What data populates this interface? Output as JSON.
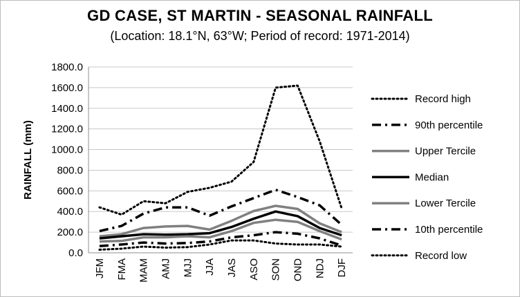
{
  "title": "GD CASE, ST MARTIN - SEASONAL RAINFALL",
  "subtitle": "(Location: 18.1°N, 63°W; Period of record: 1971-2014)",
  "chart_data": {
    "type": "line",
    "title": "GD CASE, ST MARTIN - SEASONAL RAINFALL",
    "subtitle": "(Location: 18.1°N, 63°W; Period of record: 1971-2014)",
    "xlabel": "",
    "ylabel": "RAINFALL (mm)",
    "ylim": [
      0,
      1800
    ],
    "yticks": [
      "0.0",
      "200.0",
      "400.0",
      "600.0",
      "800.0",
      "1000.0",
      "1200.0",
      "1400.0",
      "1600.0",
      "1800.0"
    ],
    "categories": [
      "JFM",
      "FMA",
      "MAM",
      "AMJ",
      "MJJ",
      "JJA",
      "JAS",
      "ASO",
      "SON",
      "OND",
      "NDJ",
      "DJF"
    ],
    "grid": true,
    "legend_position": "right",
    "series": [
      {
        "name": "Record high",
        "style": "dotted",
        "color": "#000000",
        "values": [
          440,
          370,
          500,
          480,
          590,
          630,
          690,
          880,
          1600,
          1620,
          1080,
          430
        ]
      },
      {
        "name": "90th percentile",
        "style": "dashdot",
        "color": "#000000",
        "values": [
          210,
          260,
          380,
          440,
          440,
          360,
          450,
          530,
          610,
          540,
          460,
          270
        ]
      },
      {
        "name": "Upper Tercile",
        "style": "solid",
        "color": "#808080",
        "values": [
          160,
          180,
          240,
          255,
          260,
          225,
          310,
          405,
          455,
          425,
          285,
          200
        ]
      },
      {
        "name": "Median",
        "style": "solid",
        "color": "#000000",
        "values": [
          140,
          160,
          180,
          175,
          180,
          190,
          250,
          330,
          400,
          355,
          240,
          170
        ]
      },
      {
        "name": "Lower Tercile",
        "style": "solid",
        "color": "#808080",
        "values": [
          110,
          115,
          150,
          150,
          160,
          150,
          210,
          290,
          320,
          300,
          210,
          130
        ]
      },
      {
        "name": "10th percentile",
        "style": "dashdot",
        "color": "#000000",
        "values": [
          65,
          80,
          100,
          90,
          95,
          110,
          150,
          170,
          200,
          185,
          140,
          70
        ]
      },
      {
        "name": "Record low",
        "style": "dotted",
        "color": "#000000",
        "values": [
          30,
          40,
          60,
          50,
          55,
          80,
          120,
          120,
          90,
          80,
          80,
          60
        ]
      }
    ]
  }
}
